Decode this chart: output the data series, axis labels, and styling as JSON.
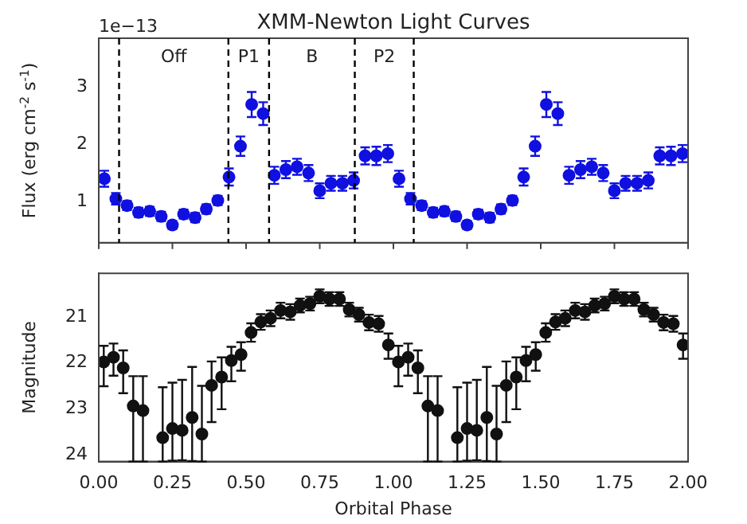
{
  "chart_data": [
    {
      "type": "scatter",
      "title": "XMM-Newton Light Curves",
      "ylabel": "Flux (erg cm$^{-2}$ s$^{-1}$)",
      "xlim": [
        0,
        2
      ],
      "xticks": [
        0,
        0.25,
        0.5,
        0.75,
        1,
        1.25,
        1.5,
        1.75,
        2
      ],
      "ylim": [
        0.28,
        3.86
      ],
      "yticks": [
        1,
        2,
        3
      ],
      "tick_labels": "y",
      "grid": false,
      "legend": false,
      "marker": "circle",
      "line_style": "none",
      "annotations": [
        "1e−13",
        "Off",
        "P1",
        "B",
        "P2"
      ],
      "ref_lines": [
        {
          "axis": "x",
          "value": 0.069,
          "color": "#000000",
          "line_style": "dashed"
        },
        {
          "axis": "x",
          "value": 0.44,
          "color": "#000000",
          "line_style": "dashed"
        },
        {
          "axis": "x",
          "value": 0.578,
          "color": "#000000",
          "line_style": "dashed"
        },
        {
          "axis": "x",
          "value": 0.869,
          "color": "#000000",
          "line_style": "dashed"
        },
        {
          "axis": "x",
          "value": 1.069,
          "color": "#000000",
          "line_style": "dashed"
        }
      ],
      "series": [
        {
          "color": "#1010e0",
          "x": [
            0.019,
            0.058,
            0.096,
            0.135,
            0.173,
            0.212,
            0.25,
            0.288,
            0.327,
            0.365,
            0.404,
            0.442,
            0.481,
            0.519,
            0.558,
            0.596,
            0.635,
            0.673,
            0.712,
            0.75,
            0.788,
            0.827,
            0.865,
            0.904,
            0.942,
            0.981,
            1.019,
            1.058,
            1.096,
            1.135,
            1.173,
            1.212,
            1.25,
            1.288,
            1.327,
            1.365,
            1.404,
            1.442,
            1.481,
            1.519,
            1.558,
            1.596,
            1.635,
            1.673,
            1.712,
            1.75,
            1.788,
            1.827,
            1.865,
            1.904,
            1.942,
            1.981
          ],
          "values": [
            1.4,
            1.05,
            0.93,
            0.81,
            0.83,
            0.74,
            0.59,
            0.78,
            0.72,
            0.87,
            1.02,
            1.43,
            1.97,
            2.7,
            2.54,
            1.46,
            1.56,
            1.61,
            1.5,
            1.19,
            1.32,
            1.32,
            1.37,
            1.8,
            1.8,
            1.84,
            1.4,
            1.05,
            0.93,
            0.81,
            0.83,
            0.74,
            0.59,
            0.78,
            0.72,
            0.87,
            1.02,
            1.43,
            1.97,
            2.7,
            2.54,
            1.46,
            1.56,
            1.61,
            1.5,
            1.19,
            1.32,
            1.32,
            1.37,
            1.8,
            1.8,
            1.84
          ],
          "errors": [
            0.14,
            0.1,
            0.08,
            0.08,
            0.08,
            0.08,
            0.07,
            0.08,
            0.08,
            0.08,
            0.08,
            0.15,
            0.17,
            0.22,
            0.2,
            0.15,
            0.15,
            0.14,
            0.14,
            0.13,
            0.13,
            0.13,
            0.14,
            0.15,
            0.16,
            0.15,
            0.14,
            0.1,
            0.08,
            0.08,
            0.08,
            0.08,
            0.07,
            0.08,
            0.08,
            0.08,
            0.08,
            0.15,
            0.17,
            0.22,
            0.2,
            0.15,
            0.15,
            0.14,
            0.14,
            0.13,
            0.13,
            0.13,
            0.14,
            0.15,
            0.16,
            0.15
          ]
        }
      ]
    },
    {
      "type": "scatter",
      "xlabel": "Orbital Phase",
      "ylabel": "Magnitude",
      "xlim": [
        0,
        2
      ],
      "xticks": [
        {
          "value": 0,
          "label": "0.00"
        },
        {
          "value": 0.25,
          "label": "0.25"
        },
        {
          "value": 0.5,
          "label": "0.50"
        },
        {
          "value": 0.75,
          "label": "0.75"
        },
        {
          "value": 1,
          "label": "1.00"
        },
        {
          "value": 1.25,
          "label": "1.25"
        },
        {
          "value": 1.5,
          "label": "1.50"
        },
        {
          "value": 1.75,
          "label": "1.75"
        },
        {
          "value": 2,
          "label": "2.00"
        }
      ],
      "ylim": [
        24.15,
        20.05
      ],
      "yticks": [
        21,
        22,
        23,
        24
      ],
      "grid": false,
      "legend": false,
      "marker": "circle",
      "line_style": "none",
      "series": [
        {
          "color": "#111111",
          "x": [
            0.017,
            0.05,
            0.083,
            0.117,
            0.15,
            0.183,
            0.217,
            0.25,
            0.283,
            0.317,
            0.35,
            0.383,
            0.417,
            0.45,
            0.483,
            0.517,
            0.55,
            0.583,
            0.617,
            0.65,
            0.683,
            0.717,
            0.75,
            0.783,
            0.817,
            0.85,
            0.883,
            0.917,
            0.95,
            0.983,
            1.017,
            1.05,
            1.083,
            1.117,
            1.15,
            1.183,
            1.217,
            1.25,
            1.283,
            1.317,
            1.35,
            1.383,
            1.417,
            1.45,
            1.483,
            1.517,
            1.55,
            1.583,
            1.617,
            1.65,
            1.683,
            1.717,
            1.75,
            1.783,
            1.817,
            1.85,
            1.883,
            1.917,
            1.95,
            1.983
          ],
          "values": [
            21.98,
            21.88,
            22.11,
            22.94,
            23.04,
            null,
            23.63,
            23.43,
            23.47,
            23.19,
            23.55,
            22.49,
            22.31,
            21.95,
            21.82,
            21.34,
            21.11,
            21.03,
            20.86,
            20.89,
            20.75,
            20.71,
            20.55,
            20.61,
            20.61,
            20.84,
            20.95,
            21.12,
            21.15,
            21.61,
            21.98,
            21.88,
            22.11,
            22.94,
            23.04,
            null,
            23.63,
            23.43,
            23.47,
            23.19,
            23.55,
            22.49,
            22.31,
            21.95,
            21.82,
            21.34,
            21.11,
            21.03,
            20.86,
            20.89,
            20.75,
            20.71,
            20.55,
            20.61,
            20.61,
            20.84,
            20.95,
            21.12,
            21.15,
            21.61
          ],
          "errors": [
            [
              21.63,
              22.51
            ],
            [
              21.58,
              22.28
            ],
            [
              21.73,
              22.66
            ],
            [
              22.29,
              24.15
            ],
            [
              22.29,
              24.15
            ],
            null,
            [
              22.53,
              24.15
            ],
            [
              22.43,
              24.13
            ],
            [
              22.37,
              24.12
            ],
            [
              22.09,
              24.14
            ],
            [
              22.5,
              24.15
            ],
            [
              21.97,
              23.29
            ],
            [
              21.88,
              23.01
            ],
            [
              21.65,
              22.4
            ],
            [
              21.55,
              22.17
            ],
            0.2,
            0.17,
            0.17,
            0.17,
            0.17,
            0.15,
            0.15,
            0.15,
            0.15,
            0.15,
            0.15,
            0.15,
            0.17,
            0.17,
            [
              21.36,
              21.91
            ],
            [
              21.63,
              22.51
            ],
            [
              21.58,
              22.28
            ],
            [
              21.73,
              22.66
            ],
            [
              22.29,
              24.15
            ],
            [
              22.29,
              24.15
            ],
            null,
            [
              22.53,
              24.15
            ],
            [
              22.43,
              24.13
            ],
            [
              22.37,
              24.12
            ],
            [
              22.09,
              24.14
            ],
            [
              22.5,
              24.15
            ],
            [
              21.97,
              23.29
            ],
            [
              21.88,
              23.01
            ],
            [
              21.65,
              22.4
            ],
            [
              21.55,
              22.17
            ],
            0.2,
            0.17,
            0.17,
            0.17,
            0.17,
            0.15,
            0.15,
            0.15,
            0.15,
            0.15,
            0.15,
            0.15,
            0.17,
            0.17,
            [
              21.36,
              21.91
            ]
          ]
        }
      ]
    }
  ]
}
